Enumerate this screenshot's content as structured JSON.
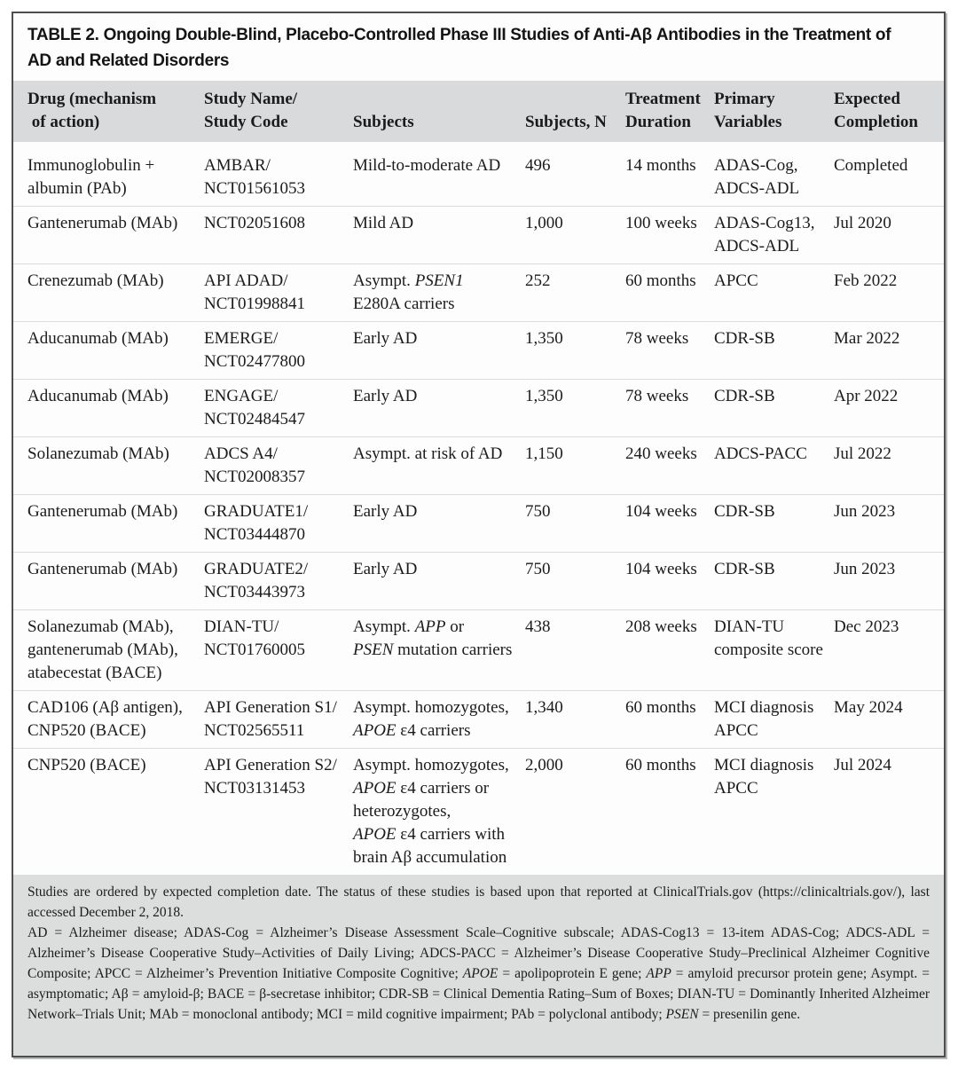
{
  "table": {
    "label": "TABLE 2",
    "title": "TABLE 2. Ongoing Double-Blind, Placebo-Controlled Phase III Studies of Anti-Aβ Antibodies in the Treatment of\nAD and Related Disorders",
    "columns": [
      "Drug (mechanism\n of action)",
      "Study Name/\nStudy Code",
      "Subjects",
      "Subjects, N",
      "Treatment\nDuration",
      "Primary\nVariables",
      "Expected\nCompletion"
    ],
    "rows": [
      {
        "drug": "Immunoglobulin +\nalbumin (PAb)",
        "study": "AMBAR/\nNCT01561053",
        "subjects": "Mild-to-moderate AD",
        "n": "496",
        "duration": "14 months",
        "primary": "ADAS-Cog,\nADCS-ADL",
        "completion": "Completed"
      },
      {
        "drug": "Gantenerumab (MAb)",
        "study": "NCT02051608",
        "subjects": "Mild AD",
        "n": "1,000",
        "duration": "100 weeks",
        "primary": "ADAS-Cog13,\nADCS-ADL",
        "completion": "Jul 2020"
      },
      {
        "drug": "Crenezumab (MAb)",
        "study": "API ADAD/\nNCT01998841",
        "subjects": "Asympt. *PSEN1*\nE280A carriers",
        "n": "252",
        "duration": "60 months",
        "primary": "APCC",
        "completion": "Feb 2022"
      },
      {
        "drug": "Aducanumab (MAb)",
        "study": "EMERGE/\nNCT02477800",
        "subjects": "Early AD",
        "n": "1,350",
        "duration": "78 weeks",
        "primary": "CDR-SB",
        "completion": "Mar 2022"
      },
      {
        "drug": "Aducanumab (MAb)",
        "study": "ENGAGE/\nNCT02484547",
        "subjects": "Early AD",
        "n": "1,350",
        "duration": "78 weeks",
        "primary": "CDR-SB",
        "completion": "Apr 2022"
      },
      {
        "drug": "Solanezumab (MAb)",
        "study": "ADCS A4/\nNCT02008357",
        "subjects": "Asympt. at risk of AD",
        "n": "1,150",
        "duration": "240 weeks",
        "primary": "ADCS-PACC",
        "completion": "Jul 2022"
      },
      {
        "drug": "Gantenerumab (MAb)",
        "study": "GRADUATE1/\nNCT03444870",
        "subjects": "Early AD",
        "n": "750",
        "duration": "104 weeks",
        "primary": "CDR-SB",
        "completion": "Jun 2023"
      },
      {
        "drug": "Gantenerumab (MAb)",
        "study": "GRADUATE2/\nNCT03443973",
        "subjects": "Early AD",
        "n": "750",
        "duration": "104 weeks",
        "primary": "CDR-SB",
        "completion": "Jun 2023"
      },
      {
        "drug": "Solanezumab (MAb),\ngantenerumab (MAb),\natabecestat (BACE)",
        "study": "DIAN-TU/\nNCT01760005",
        "subjects": "Asympt. *APP* or\n*PSEN* mutation carriers",
        "n": "438",
        "duration": "208 weeks",
        "primary": "DIAN-TU\ncomposite score",
        "completion": "Dec 2023"
      },
      {
        "drug": "CAD106 (Aβ antigen),\nCNP520 (BACE)",
        "study": "API Generation S1/\nNCT02565511",
        "subjects": "Asympt. homozygotes,\n*APOE* ε4 carriers",
        "n": "1,340",
        "duration": "60 months",
        "primary": "MCI diagnosis\nAPCC",
        "completion": "May 2024"
      },
      {
        "drug": "CNP520 (BACE)",
        "study": "API Generation S2/\nNCT03131453",
        "subjects": "Asympt. homozygotes,\n*APOE* ε4 carriers or\nheterozygotes,\n*APOE* ε4 carriers with\nbrain Aβ accumulation",
        "n": "2,000",
        "duration": "60 months",
        "primary": "MCI diagnosis\nAPCC",
        "completion": "Jul 2024"
      }
    ],
    "footnotes": [
      {
        "text": "Studies are ordered by expected completion date. The status of these studies is based upon that reported at ClinicalTrials.gov (https://clinicaltrials.gov/), last accessed December 2, 2018."
      },
      {
        "text": "AD = Alzheimer disease; ADAS-Cog = Alzheimer’s Disease Assessment Scale–Cognitive subscale; ADAS-Cog13 = 13-item ADAS-Cog; ADCS-ADL = Alzheimer’s Disease Cooperative Study–Activities of Daily Living; ADCS-PACC = Alzheimer’s Disease Cooperative Study–Preclinical Alzheimer Cognitive Composite; APCC = Alzheimer’s Prevention Initiative Composite Cognitive; *APOE* = apolipoprotein E gene; *APP* = amyloid precursor protein gene; Asympt. = asymptomatic; Aβ = amyloid-β; BACE = β-secretase inhibitor; CDR-SB = Clinical Dementia Rating–Sum of Boxes; DIAN-TU = Dominantly Inherited Alzheimer Network–Trials Unit; MAb = monoclonal antibody; MCI = mild cognitive impairment; PAb = polyclonal antibody; *PSEN* = presenilin gene."
      }
    ],
    "colors": {
      "header_bg": "#d8dadb",
      "footnote_bg": "#dcdedd",
      "border": "#4e4e4e",
      "text": "#1b1b1b"
    }
  }
}
